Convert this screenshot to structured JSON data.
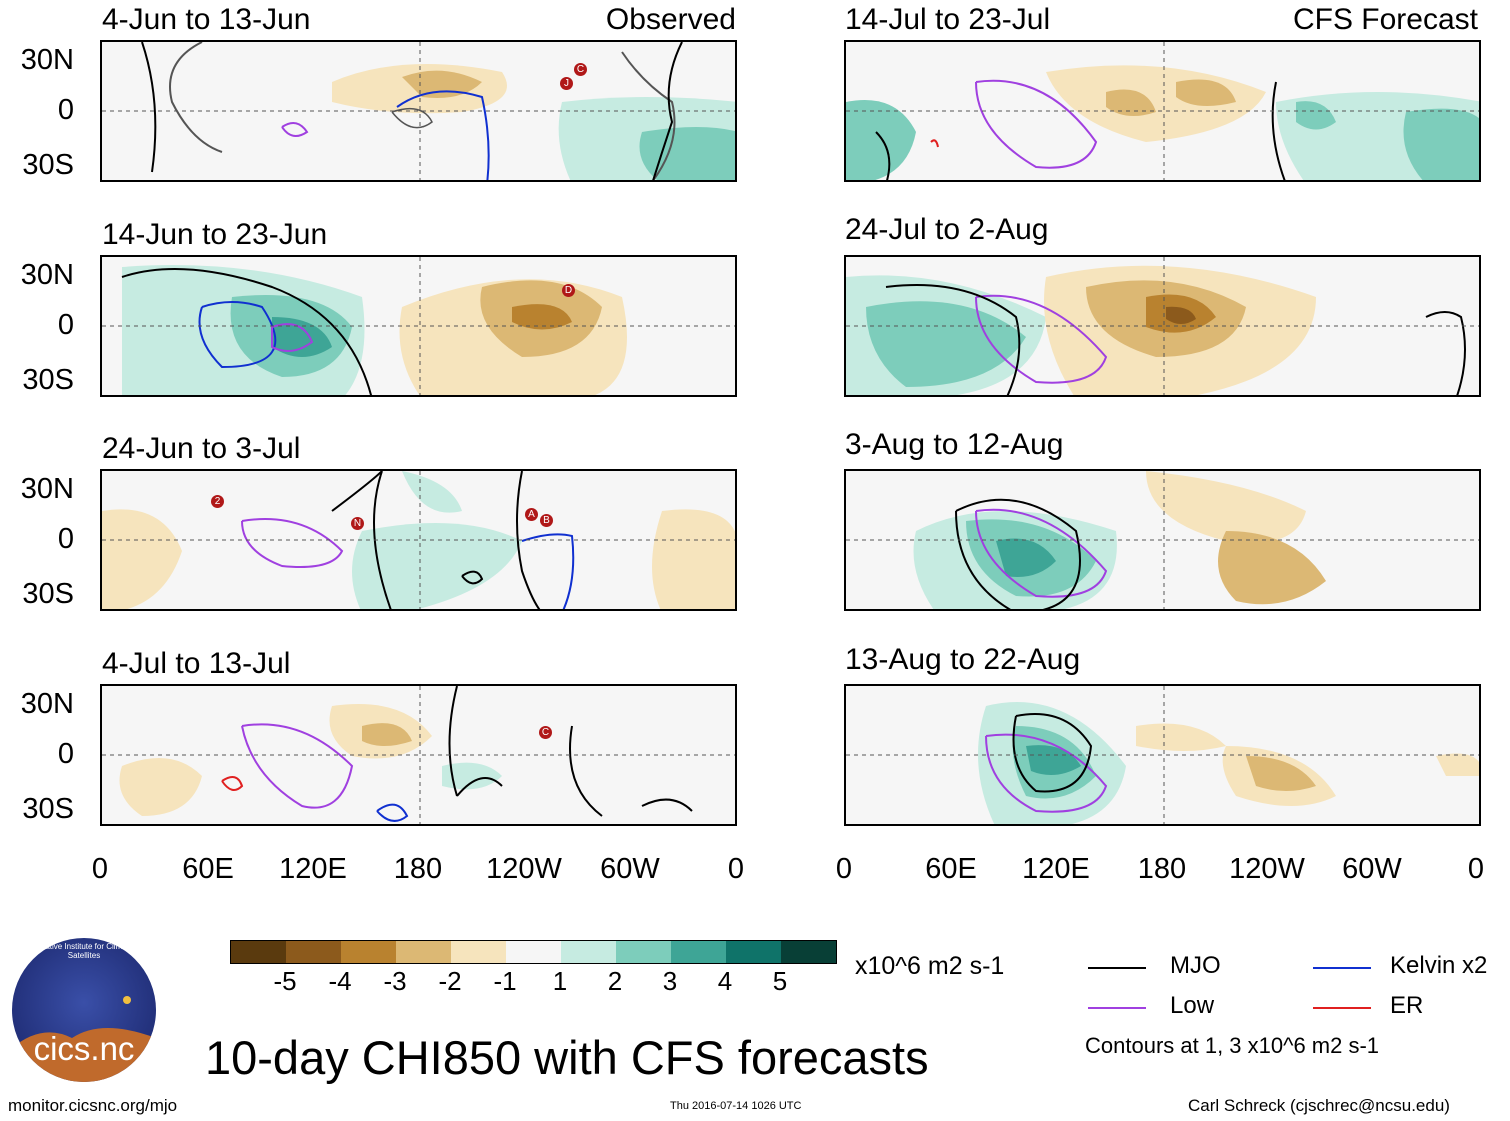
{
  "labels": {
    "observed": "Observed",
    "forecast": "CFS Forecast",
    "main_title": "10-day CHI850 with CFS forecasts",
    "units": "x10^6 m2 s-1",
    "contours_note": "Contours at 1, 3 x10^6 m2 s-1",
    "footer_left": "monitor.cicsnc.org/mjo",
    "footer_center": "Thu 2016-07-14 1026 UTC",
    "footer_right": "Carl Schreck (cjschrec@ncsu.edu)",
    "logo_text": "cics.nc",
    "logo_ring": "Cooperative Institute for Climate and Satellites"
  },
  "panels_left": [
    {
      "title": "4-Jun to 13-Jun"
    },
    {
      "title": "14-Jun to 23-Jun"
    },
    {
      "title": "24-Jun to 3-Jul"
    },
    {
      "title": "4-Jul to 13-Jul"
    }
  ],
  "panels_right": [
    {
      "title": "14-Jul to 23-Jul"
    },
    {
      "title": "24-Jul to 2-Aug"
    },
    {
      "title": "3-Aug to 12-Aug"
    },
    {
      "title": "13-Aug to 22-Aug"
    }
  ],
  "lat_ticks": [
    "30N",
    "0",
    "30S"
  ],
  "lon_ticks": [
    "0",
    "60E",
    "120E",
    "180",
    "120W",
    "60W",
    "0"
  ],
  "colorbar": {
    "labels": [
      "-5",
      "-4",
      "-3",
      "-2",
      "-1",
      "1",
      "2",
      "3",
      "4",
      "5"
    ],
    "colors": [
      "#5a3a0e",
      "#8c5a1c",
      "#b9822f",
      "#dcb874",
      "#f6e4bd",
      "#f6f6f6",
      "#c6ebe1",
      "#7dcdbb",
      "#3ea596",
      "#0f7369",
      "#083f36"
    ]
  },
  "legend": [
    {
      "label": "MJO",
      "color": "#000000"
    },
    {
      "label": "Kelvin x2",
      "color": "#1030d0"
    },
    {
      "label": "Low",
      "color": "#a040e0"
    },
    {
      "label": "ER",
      "color": "#e02020"
    }
  ],
  "storm_markers": [
    "J",
    "C",
    "D",
    "2",
    "N",
    "A",
    "B",
    "C"
  ]
}
